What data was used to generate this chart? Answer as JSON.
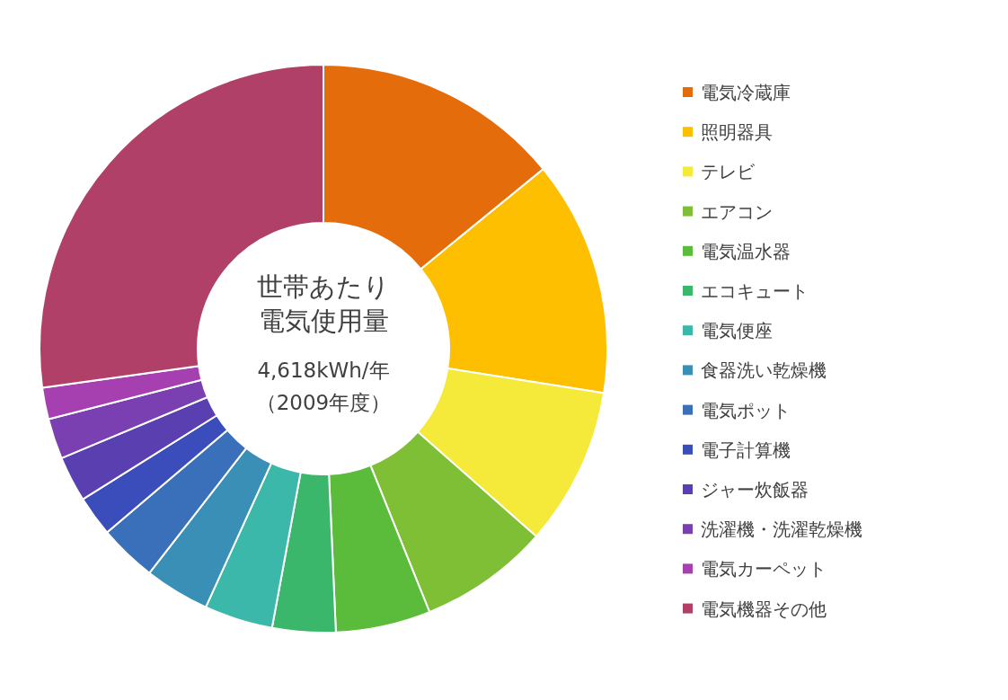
{
  "chart_data": {
    "type": "donut",
    "title": "世帯あたり電気使用量",
    "subtitle": "4,618kWh/年（2009年度）",
    "legend": "right",
    "categories": [
      "電気冷蔵庫",
      "照明器具",
      "テレビ",
      "エアコン",
      "電気温水器",
      "エコキュート",
      "電気便座",
      "食器洗い乾燥機",
      "電気ポット",
      "電子計算機",
      "ジャー炊飯器",
      "洗濯機・洗濯乾燥機",
      "電気カーペット",
      "電気機器その他"
    ],
    "values": [
      14.1,
      13.4,
      9.0,
      7.4,
      5.4,
      3.6,
      3.9,
      3.7,
      3.3,
      2.3,
      2.6,
      2.3,
      1.8,
      27.2
    ],
    "colors": [
      "#e46c0a",
      "#fdbf00",
      "#f5e93a",
      "#7fbf35",
      "#5bbb3a",
      "#3ab76a",
      "#3bb8aa",
      "#3a8fb7",
      "#3a6fba",
      "#3a4dbb",
      "#5a3fb0",
      "#7a3fb0",
      "#a63fb0",
      "#b04068"
    ]
  }
}
